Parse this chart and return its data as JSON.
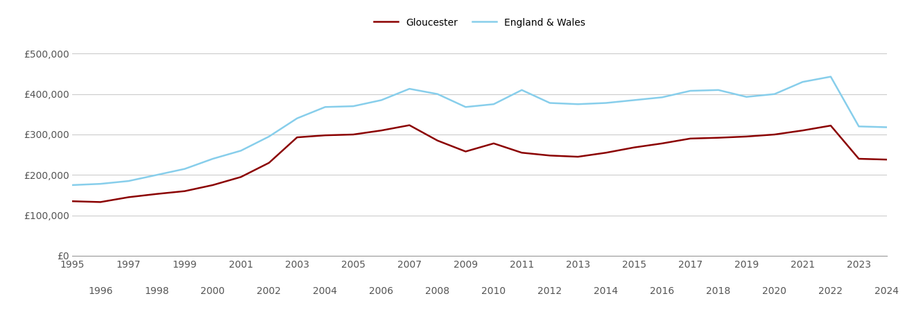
{
  "gloucester": {
    "years": [
      1995,
      1996,
      1997,
      1998,
      1999,
      2000,
      2001,
      2002,
      2003,
      2004,
      2005,
      2006,
      2007,
      2008,
      2009,
      2010,
      2011,
      2012,
      2013,
      2014,
      2015,
      2016,
      2017,
      2018,
      2019,
      2020,
      2021,
      2022,
      2023,
      2024
    ],
    "values": [
      135000,
      133000,
      145000,
      153000,
      160000,
      175000,
      195000,
      230000,
      293000,
      298000,
      300000,
      310000,
      323000,
      285000,
      258000,
      278000,
      255000,
      248000,
      245000,
      255000,
      268000,
      278000,
      290000,
      292000,
      295000,
      300000,
      310000,
      322000,
      240000,
      238000
    ]
  },
  "england_wales": {
    "years": [
      1995,
      1996,
      1997,
      1998,
      1999,
      2000,
      2001,
      2002,
      2003,
      2004,
      2005,
      2006,
      2007,
      2008,
      2009,
      2010,
      2011,
      2012,
      2013,
      2014,
      2015,
      2016,
      2017,
      2018,
      2019,
      2020,
      2021,
      2022,
      2023,
      2024
    ],
    "values": [
      175000,
      178000,
      185000,
      200000,
      215000,
      240000,
      260000,
      295000,
      340000,
      368000,
      370000,
      385000,
      413000,
      400000,
      368000,
      375000,
      410000,
      378000,
      375000,
      378000,
      385000,
      392000,
      408000,
      410000,
      393000,
      400000,
      430000,
      443000,
      320000,
      318000
    ]
  },
  "gloucester_color": "#8B0000",
  "england_wales_color": "#87CEEB",
  "line_width": 1.8,
  "ylim": [
    0,
    540000
  ],
  "yticks": [
    0,
    100000,
    200000,
    300000,
    400000,
    500000
  ],
  "ytick_labels": [
    "£0",
    "£100,000",
    "£200,000",
    "£300,000",
    "£400,000",
    "£500,000"
  ],
  "background_color": "#ffffff",
  "grid_color": "#cccccc",
  "legend_labels": [
    "Gloucester",
    "England & Wales"
  ],
  "x_tick_odd": [
    1995,
    1997,
    1999,
    2001,
    2003,
    2005,
    2007,
    2009,
    2011,
    2013,
    2015,
    2017,
    2019,
    2021,
    2023
  ],
  "x_tick_even": [
    1996,
    1998,
    2000,
    2002,
    2004,
    2006,
    2008,
    2010,
    2012,
    2014,
    2016,
    2018,
    2020,
    2022,
    2024
  ]
}
